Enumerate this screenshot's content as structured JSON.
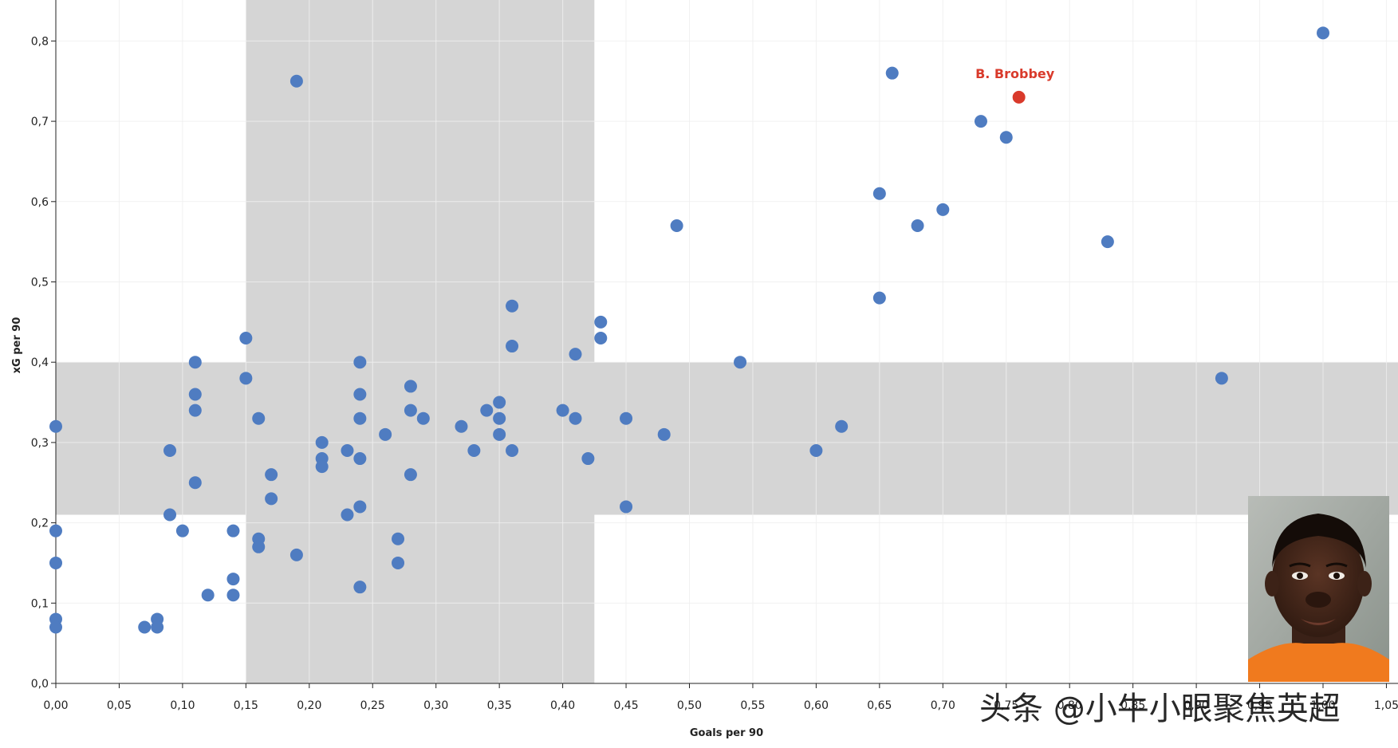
{
  "chart_data": {
    "type": "scatter",
    "title": "",
    "xlabel": "Goals per 90",
    "ylabel": "xG per 90",
    "xlim": [
      0.0,
      1.05
    ],
    "ylim": [
      0.0,
      0.85
    ],
    "xticks": [
      "0,00",
      "0,05",
      "0,10",
      "0,15",
      "0,20",
      "0,25",
      "0,30",
      "0,35",
      "0,40",
      "0,45",
      "0,50",
      "0,55",
      "0,60",
      "0,65",
      "0,70",
      "0,75",
      "0,80",
      "0,85",
      "0,90",
      "0,95",
      "1,00",
      "1,05"
    ],
    "yticks": [
      "0,0",
      "0,1",
      "0,2",
      "0,3",
      "0,4",
      "0,5",
      "0,6",
      "0,7",
      "0,8"
    ],
    "grid": true,
    "colors": {
      "points": "#4f7cc1",
      "highlight": "#d93a2b",
      "band": "#d5d5d5",
      "grid": "#e8e8e8"
    },
    "bands": {
      "x_range": [
        0.15,
        0.425
      ],
      "y_range": [
        0.21,
        0.4
      ]
    },
    "highlight": {
      "label": "B. Brobbey",
      "x": 0.76,
      "y": 0.73
    },
    "points": [
      [
        0.19,
        0.75
      ],
      [
        0.66,
        0.76
      ],
      [
        1.0,
        0.81
      ],
      [
        0.73,
        0.7
      ],
      [
        0.75,
        0.68
      ],
      [
        0.65,
        0.61
      ],
      [
        0.7,
        0.59
      ],
      [
        0.68,
        0.57
      ],
      [
        0.49,
        0.57
      ],
      [
        0.83,
        0.55
      ],
      [
        0.65,
        0.48
      ],
      [
        0.36,
        0.47
      ],
      [
        0.43,
        0.45
      ],
      [
        0.43,
        0.43
      ],
      [
        0.15,
        0.43
      ],
      [
        0.36,
        0.42
      ],
      [
        0.41,
        0.41
      ],
      [
        0.11,
        0.4
      ],
      [
        0.24,
        0.4
      ],
      [
        0.54,
        0.4
      ],
      [
        0.92,
        0.38
      ],
      [
        0.15,
        0.38
      ],
      [
        0.28,
        0.37
      ],
      [
        0.11,
        0.36
      ],
      [
        0.24,
        0.36
      ],
      [
        0.35,
        0.35
      ],
      [
        0.11,
        0.34
      ],
      [
        0.28,
        0.34
      ],
      [
        0.34,
        0.34
      ],
      [
        0.4,
        0.34
      ],
      [
        0.16,
        0.33
      ],
      [
        0.24,
        0.33
      ],
      [
        0.29,
        0.33
      ],
      [
        0.35,
        0.33
      ],
      [
        0.41,
        0.33
      ],
      [
        0.45,
        0.33
      ],
      [
        0.0,
        0.32
      ],
      [
        0.32,
        0.32
      ],
      [
        0.62,
        0.32
      ],
      [
        0.26,
        0.31
      ],
      [
        0.35,
        0.31
      ],
      [
        0.48,
        0.31
      ],
      [
        0.21,
        0.3
      ],
      [
        0.09,
        0.29
      ],
      [
        0.23,
        0.29
      ],
      [
        0.33,
        0.29
      ],
      [
        0.36,
        0.29
      ],
      [
        0.6,
        0.29
      ],
      [
        0.21,
        0.28
      ],
      [
        0.24,
        0.28
      ],
      [
        0.42,
        0.28
      ],
      [
        0.21,
        0.27
      ],
      [
        0.17,
        0.26
      ],
      [
        0.28,
        0.26
      ],
      [
        0.11,
        0.25
      ],
      [
        0.17,
        0.23
      ],
      [
        0.24,
        0.22
      ],
      [
        0.45,
        0.22
      ],
      [
        0.09,
        0.21
      ],
      [
        0.23,
        0.21
      ],
      [
        0.0,
        0.19
      ],
      [
        0.1,
        0.19
      ],
      [
        0.14,
        0.19
      ],
      [
        0.16,
        0.18
      ],
      [
        0.27,
        0.18
      ],
      [
        0.16,
        0.17
      ],
      [
        0.19,
        0.16
      ],
      [
        0.0,
        0.15
      ],
      [
        0.27,
        0.15
      ],
      [
        0.14,
        0.13
      ],
      [
        0.24,
        0.12
      ],
      [
        0.12,
        0.11
      ],
      [
        0.14,
        0.11
      ],
      [
        0.0,
        0.08
      ],
      [
        0.08,
        0.08
      ],
      [
        0.0,
        0.07
      ],
      [
        0.07,
        0.07
      ],
      [
        0.08,
        0.07
      ]
    ]
  },
  "watermark": "头条 @小牛小眼聚焦英超",
  "photo": {
    "alt": "player-photo",
    "jersey_color": "#f07a1e"
  }
}
